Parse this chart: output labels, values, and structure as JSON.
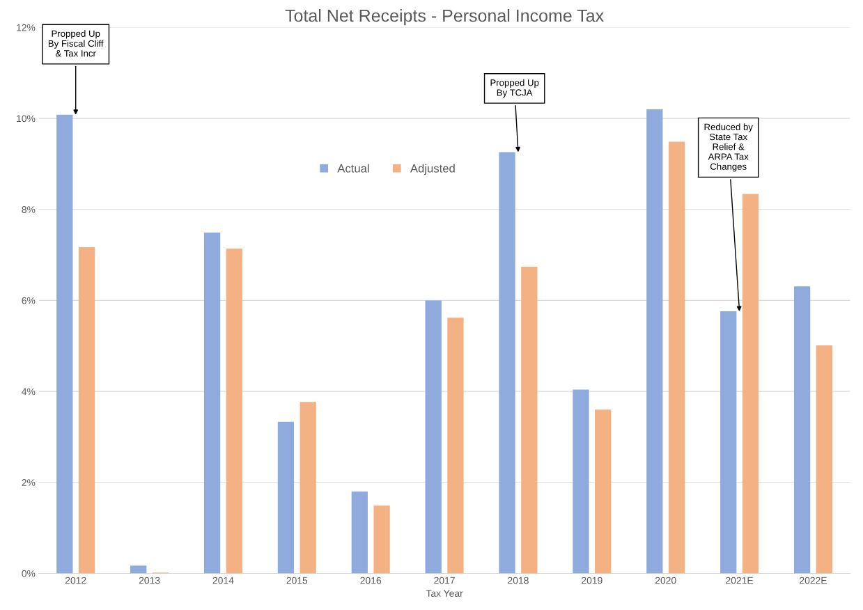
{
  "chart_data": {
    "type": "bar",
    "title": "Total Net Receipts - Personal Income Tax",
    "xlabel": "Tax Year",
    "categories": [
      "2012",
      "2013",
      "2014",
      "2015",
      "2016",
      "2017",
      "2018",
      "2019",
      "2020",
      "2021E",
      "2022E"
    ],
    "series": [
      {
        "name": "Actual",
        "color": "#8faadc",
        "values": [
          10.08,
          0.17,
          7.49,
          3.33,
          1.8,
          6.0,
          9.26,
          4.04,
          10.2,
          5.76,
          6.31
        ]
      },
      {
        "name": "Adjusted",
        "color": "#f4b183",
        "values": [
          7.17,
          0.02,
          7.14,
          3.77,
          1.49,
          5.62,
          6.74,
          3.6,
          9.49,
          8.34,
          5.01
        ]
      }
    ],
    "ylim": [
      0,
      12
    ],
    "yticks": [
      {
        "value": 0,
        "label": "0%"
      },
      {
        "value": 2,
        "label": "2%"
      },
      {
        "value": 4,
        "label": "4%"
      },
      {
        "value": 6,
        "label": "6%"
      },
      {
        "value": 8,
        "label": "8%"
      },
      {
        "value": 10,
        "label": "10%"
      },
      {
        "value": 12,
        "label": "12%"
      }
    ],
    "grid": "y",
    "legend": "top",
    "annotations": [
      {
        "text": "Propped Up\nBy Fiscal Cliff\n& Tax Incr",
        "x": "2012",
        "y": 10.08
      },
      {
        "text": "Propped Up\nBy TCJA",
        "x": "2018",
        "y": 9.26
      },
      {
        "text": "Reduced by\nState Tax\nRelief &\nARPA Tax\nChanges",
        "x": "2021E",
        "y": 5.76
      }
    ]
  }
}
